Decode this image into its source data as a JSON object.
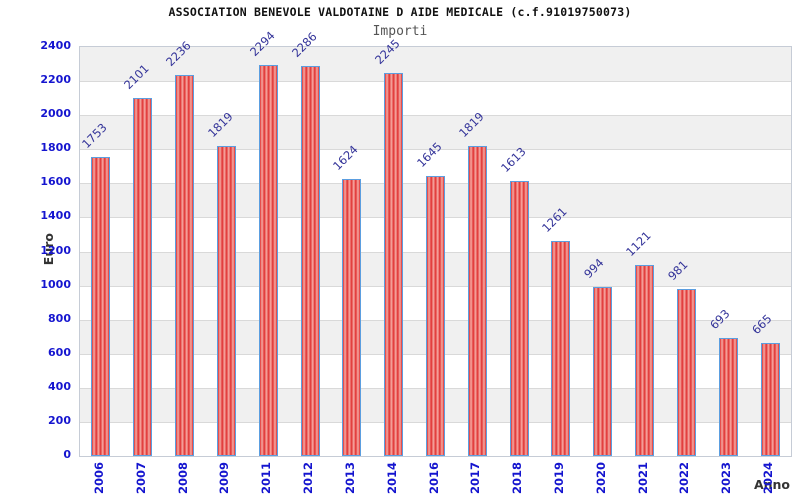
{
  "chart_data": {
    "type": "bar",
    "title": "ASSOCIATION BENEVOLE VALDOTAINE D AIDE MEDICALE (c.f.91019750073)",
    "subtitle": "Importi",
    "xlabel": "Anno",
    "ylabel": "Euro",
    "categories": [
      "2006",
      "2007",
      "2008",
      "2009",
      "2011",
      "2012",
      "2013",
      "2014",
      "2016",
      "2017",
      "2018",
      "2019",
      "2020",
      "2021",
      "2022",
      "2023",
      "2024"
    ],
    "values": [
      1753,
      2101,
      2236,
      1819,
      2294,
      2286,
      1624,
      2245,
      1645,
      1819,
      1613,
      1261,
      994,
      1121,
      981,
      693,
      665
    ],
    "ylim": [
      0,
      2400
    ],
    "y_ticks": [
      0,
      200,
      400,
      600,
      800,
      1000,
      1200,
      1400,
      1600,
      1800,
      2000,
      2200,
      2400
    ],
    "legend": "none",
    "grid": "horizontal gridlines every 200 with alternating gray/white bands",
    "colors": {
      "bar_dark": "#e03131",
      "bar_light": "#f6aba4",
      "bar_border": "#5b9ee0",
      "tick_label": "#1515cf",
      "value_label": "#333399",
      "band_gray": "#f0f0f0",
      "gridline": "#d9d9d9",
      "plot_border": "#c6ccd6",
      "subtitle": "#555555",
      "axis_title": "#333333"
    }
  }
}
